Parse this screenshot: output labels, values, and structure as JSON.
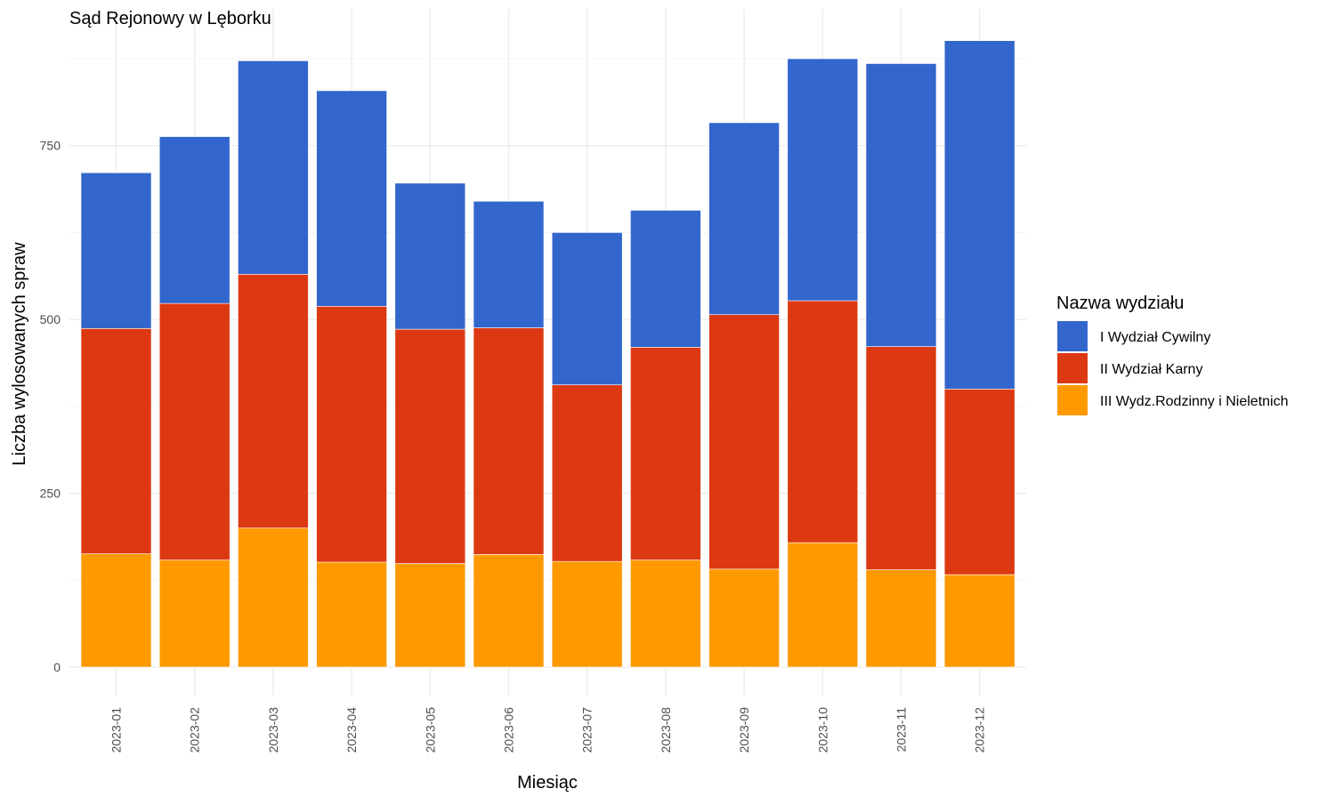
{
  "chart_data": {
    "type": "bar",
    "stacked": true,
    "title": "Sąd Rejonowy w Lęborku",
    "xlabel": "Miesiąc",
    "ylabel": "Liczba wylosowanych spraw",
    "ylim": [
      0,
      900
    ],
    "yticks": [
      0,
      250,
      500,
      750
    ],
    "grid": true,
    "legend": {
      "title": "Nazwa wydziału",
      "position": "right"
    },
    "categories": [
      "2023-01",
      "2023-02",
      "2023-03",
      "2023-04",
      "2023-05",
      "2023-06",
      "2023-07",
      "2023-08",
      "2023-09",
      "2023-10",
      "2023-11",
      "2023-12"
    ],
    "series": [
      {
        "name": "III Wydz.Rodzinny i Nieletnich",
        "color": "#ff9900",
        "values": [
          163,
          154,
          200,
          151,
          149,
          162,
          152,
          154,
          141,
          179,
          140,
          133
        ]
      },
      {
        "name": "II Wydział Karny",
        "color": "#dc3912",
        "values": [
          324,
          369,
          365,
          368,
          337,
          326,
          254,
          306,
          366,
          348,
          321,
          267
        ]
      },
      {
        "name": "I Wydział Cywilny",
        "color": "#3366cc",
        "values": [
          224,
          240,
          307,
          310,
          210,
          182,
          219,
          197,
          276,
          348,
          407,
          501
        ]
      }
    ]
  }
}
